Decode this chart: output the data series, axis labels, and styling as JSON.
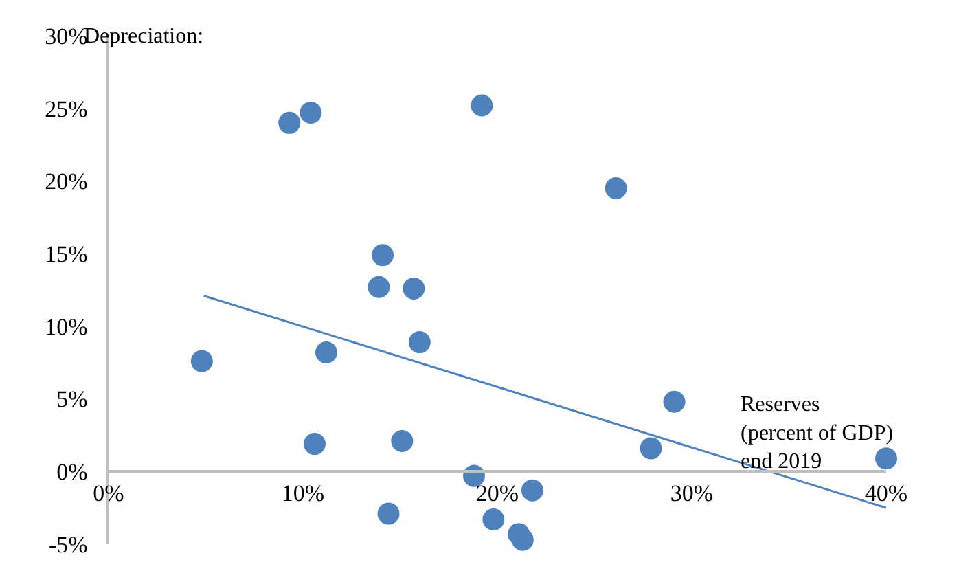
{
  "chart_data": {
    "type": "scatter",
    "xlabel": "Reserves\n(percent of GDP)\nend 2019",
    "ylabel": "Depreciation:",
    "series": [
      {
        "color": "#4f81bd",
        "marker": "circle",
        "x": [
          4.8,
          9.3,
          10.4,
          19.2,
          26.1,
          14.1,
          13.9,
          15.7,
          16.0,
          11.2,
          10.6,
          15.1,
          29.1,
          27.9,
          40.0,
          18.8,
          21.8,
          14.4,
          19.8,
          21.1,
          21.3
        ],
        "values": [
          7.6,
          24.0,
          24.7,
          25.2,
          19.5,
          14.9,
          12.7,
          12.6,
          8.9,
          8.2,
          1.9,
          2.1,
          4.8,
          1.6,
          0.9,
          -0.3,
          -1.3,
          -2.9,
          -3.3,
          -4.3,
          -4.7
        ]
      },
      {
        "type": "line",
        "color": "#4f81bd",
        "marker": "none",
        "line_style": "solid",
        "x": [
          4.9,
          40.0
        ],
        "values": [
          12.1,
          -2.5
        ]
      }
    ],
    "xlim": [
      0,
      40
    ],
    "ylim": [
      -5,
      30
    ],
    "xticks": [
      {
        "value": 0,
        "label": "0%"
      },
      {
        "value": 10,
        "label": "10%"
      },
      {
        "value": 20,
        "label": "20%"
      },
      {
        "value": 30,
        "label": "30%"
      },
      {
        "value": 40,
        "label": "40%"
      }
    ],
    "yticks": [
      {
        "value": -5,
        "label": "-5%"
      },
      {
        "value": 0,
        "label": "0%"
      },
      {
        "value": 5,
        "label": "5%"
      },
      {
        "value": 10,
        "label": "10%"
      },
      {
        "value": 15,
        "label": "15%"
      },
      {
        "value": 20,
        "label": "20%"
      },
      {
        "value": 25,
        "label": "25%"
      },
      {
        "value": 30,
        "label": "30%"
      }
    ]
  }
}
